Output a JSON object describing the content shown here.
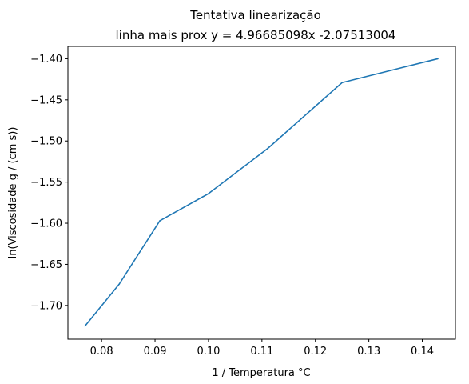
{
  "chart_data": {
    "type": "line",
    "title": "Tentativa linearização",
    "subtitle": "linha mais prox y = 4.96685098x -2.07513004",
    "xlabel": "1 / Temperatura °C",
    "ylabel": "ln(Viscosidade g / (cm s))",
    "xlim": [
      0.0737,
      0.1462
    ],
    "ylim": [
      -1.741,
      -1.385
    ],
    "xticks": [
      0.08,
      0.09,
      0.1,
      0.11,
      0.12,
      0.13,
      0.14
    ],
    "xtick_labels": [
      "0.08",
      "0.09",
      "0.10",
      "0.11",
      "0.12",
      "0.13",
      "0.14"
    ],
    "yticks": [
      -1.7,
      -1.65,
      -1.6,
      -1.55,
      -1.5,
      -1.45,
      -1.4
    ],
    "ytick_labels": [
      "−1.70",
      "−1.65",
      "−1.60",
      "−1.55",
      "−1.50",
      "−1.45",
      "−1.40"
    ],
    "grid": false,
    "series": [
      {
        "color": "#1f77b4",
        "x": [
          0.0769,
          0.0833,
          0.0909,
          0.1,
          0.1111,
          0.125,
          0.1429
        ],
        "y": [
          -1.725,
          -1.674,
          -1.597,
          -1.564,
          -1.509,
          -1.429,
          -1.4
        ]
      }
    ]
  }
}
